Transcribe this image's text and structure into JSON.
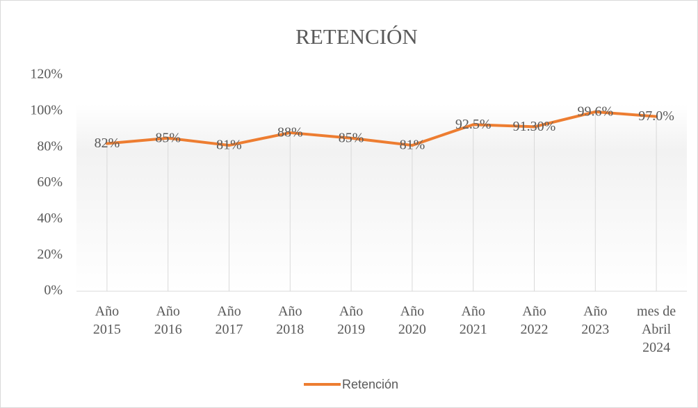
{
  "chart_data": {
    "type": "line",
    "title": "RETENCIÓN",
    "categories": [
      [
        "Año",
        "2015"
      ],
      [
        "Año",
        "2016"
      ],
      [
        "Año",
        "2017"
      ],
      [
        "Año",
        "2018"
      ],
      [
        "Año",
        "2019"
      ],
      [
        "Año",
        "2020"
      ],
      [
        "Año",
        "2021"
      ],
      [
        "Año",
        "2022"
      ],
      [
        "Año",
        "2023"
      ],
      [
        "mes de",
        "Abril",
        "2024"
      ]
    ],
    "series": [
      {
        "name": "Retención",
        "color": "#ed7d31",
        "values": [
          82,
          85,
          81,
          88,
          85,
          81,
          92.5,
          91.3,
          99.6,
          97.0
        ],
        "value_labels": [
          "82%",
          "85%",
          "81%",
          "88%",
          "85%",
          "81%",
          "92.5%",
          "91.30%",
          "99.6%",
          "97.0%"
        ]
      }
    ],
    "ylim": [
      0,
      120
    ],
    "yticks": [
      {
        "value": 0,
        "label": "0%"
      },
      {
        "value": 20,
        "label": "20%"
      },
      {
        "value": 40,
        "label": "40%"
      },
      {
        "value": 60,
        "label": "60%"
      },
      {
        "value": 80,
        "label": "80%"
      },
      {
        "value": 100,
        "label": "100%"
      },
      {
        "value": 120,
        "label": "120%"
      }
    ],
    "legend": "bottom",
    "drop_lines": true
  }
}
